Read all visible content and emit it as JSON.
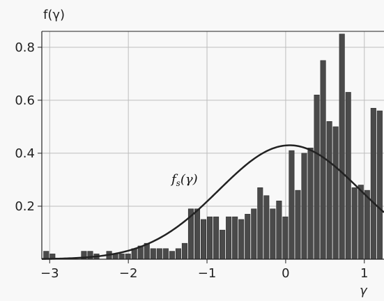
{
  "chart_data": {
    "type": "bar",
    "ylabel": "f(γ)",
    "xlabel": "γ",
    "xlim": [
      -3.1,
      1.25
    ],
    "ylim": [
      0,
      0.86
    ],
    "grid": true,
    "xticks": [
      -3,
      -2,
      -1,
      0,
      1
    ],
    "xtick_labels": [
      "−3",
      "−2",
      "−1",
      "0",
      "1"
    ],
    "yticks": [
      0.2,
      0.4,
      0.6,
      0.8
    ],
    "ytick_labels": [
      "0.2",
      "0.4",
      "0.6",
      "0.8"
    ],
    "bar_width": 0.075,
    "bars": [
      {
        "x": -3.04,
        "value": 0.03
      },
      {
        "x": -2.96,
        "value": 0.02
      },
      {
        "x": -2.56,
        "value": 0.03
      },
      {
        "x": -2.48,
        "value": 0.03
      },
      {
        "x": -2.4,
        "value": 0.02
      },
      {
        "x": -2.24,
        "value": 0.03
      },
      {
        "x": -2.16,
        "value": 0.02
      },
      {
        "x": -2.08,
        "value": 0.02
      },
      {
        "x": -2.0,
        "value": 0.02
      },
      {
        "x": -1.92,
        "value": 0.04
      },
      {
        "x": -1.84,
        "value": 0.05
      },
      {
        "x": -1.76,
        "value": 0.06
      },
      {
        "x": -1.68,
        "value": 0.04
      },
      {
        "x": -1.6,
        "value": 0.04
      },
      {
        "x": -1.52,
        "value": 0.04
      },
      {
        "x": -1.44,
        "value": 0.03
      },
      {
        "x": -1.36,
        "value": 0.04
      },
      {
        "x": -1.28,
        "value": 0.06
      },
      {
        "x": -1.2,
        "value": 0.19
      },
      {
        "x": -1.12,
        "value": 0.19
      },
      {
        "x": -1.04,
        "value": 0.15
      },
      {
        "x": -0.96,
        "value": 0.16
      },
      {
        "x": -0.88,
        "value": 0.16
      },
      {
        "x": -0.8,
        "value": 0.11
      },
      {
        "x": -0.72,
        "value": 0.16
      },
      {
        "x": -0.64,
        "value": 0.16
      },
      {
        "x": -0.56,
        "value": 0.15
      },
      {
        "x": -0.48,
        "value": 0.17
      },
      {
        "x": -0.4,
        "value": 0.19
      },
      {
        "x": -0.32,
        "value": 0.27
      },
      {
        "x": -0.24,
        "value": 0.24
      },
      {
        "x": -0.16,
        "value": 0.19
      },
      {
        "x": -0.08,
        "value": 0.22
      },
      {
        "x": 0.0,
        "value": 0.16
      },
      {
        "x": 0.08,
        "value": 0.41
      },
      {
        "x": 0.16,
        "value": 0.26
      },
      {
        "x": 0.24,
        "value": 0.4
      },
      {
        "x": 0.32,
        "value": 0.42
      },
      {
        "x": 0.4,
        "value": 0.62
      },
      {
        "x": 0.48,
        "value": 0.75
      },
      {
        "x": 0.56,
        "value": 0.52
      },
      {
        "x": 0.64,
        "value": 0.5
      },
      {
        "x": 0.72,
        "value": 0.85
      },
      {
        "x": 0.8,
        "value": 0.63
      },
      {
        "x": 0.88,
        "value": 0.27
      },
      {
        "x": 0.96,
        "value": 0.28
      },
      {
        "x": 1.04,
        "value": 0.26
      },
      {
        "x": 1.12,
        "value": 0.57
      },
      {
        "x": 1.2,
        "value": 0.56
      }
    ],
    "curve": {
      "label": "f_s(γ)",
      "mean": 0.05,
      "sd": 0.9,
      "peak": 0.43
    }
  }
}
